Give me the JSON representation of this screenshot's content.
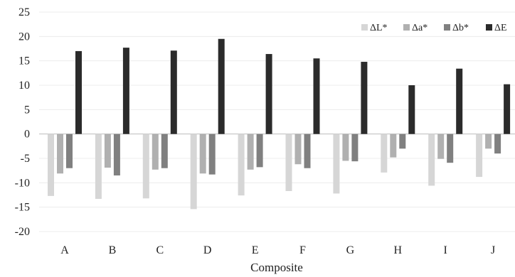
{
  "chart_data": {
    "type": "bar",
    "categories": [
      "A",
      "B",
      "C",
      "D",
      "E",
      "F",
      "G",
      "H",
      "I",
      "J"
    ],
    "series": [
      {
        "name": "ΔL*",
        "color": "#d6d6d6",
        "values": [
          -12.7,
          -13.3,
          -13.2,
          -15.4,
          -12.6,
          -11.7,
          -12.2,
          -7.9,
          -10.6,
          -8.8
        ]
      },
      {
        "name": "Δa*",
        "color": "#b0b0b0",
        "values": [
          -8.1,
          -6.9,
          -7.3,
          -8.1,
          -7.3,
          -6.2,
          -5.5,
          -4.8,
          -5.1,
          -3.0
        ]
      },
      {
        "name": "Δb*",
        "color": "#808080",
        "values": [
          -7.0,
          -8.5,
          -7.0,
          -8.3,
          -6.8,
          -7.0,
          -5.6,
          -3.0,
          -5.9,
          -4.0
        ]
      },
      {
        "name": "ΔE",
        "color": "#2b2b2b",
        "values": [
          17.0,
          17.7,
          17.1,
          19.5,
          16.4,
          15.5,
          14.8,
          10.0,
          13.4,
          10.2
        ]
      }
    ],
    "title": "",
    "xlabel": "Composite",
    "ylabel": "",
    "ylim": [
      -20,
      25
    ],
    "yticks": [
      "25",
      "20",
      "15",
      "10",
      "5",
      "0",
      "-5",
      "-10",
      "-15",
      "-20"
    ],
    "grid": true,
    "legend_position": "top-right"
  }
}
